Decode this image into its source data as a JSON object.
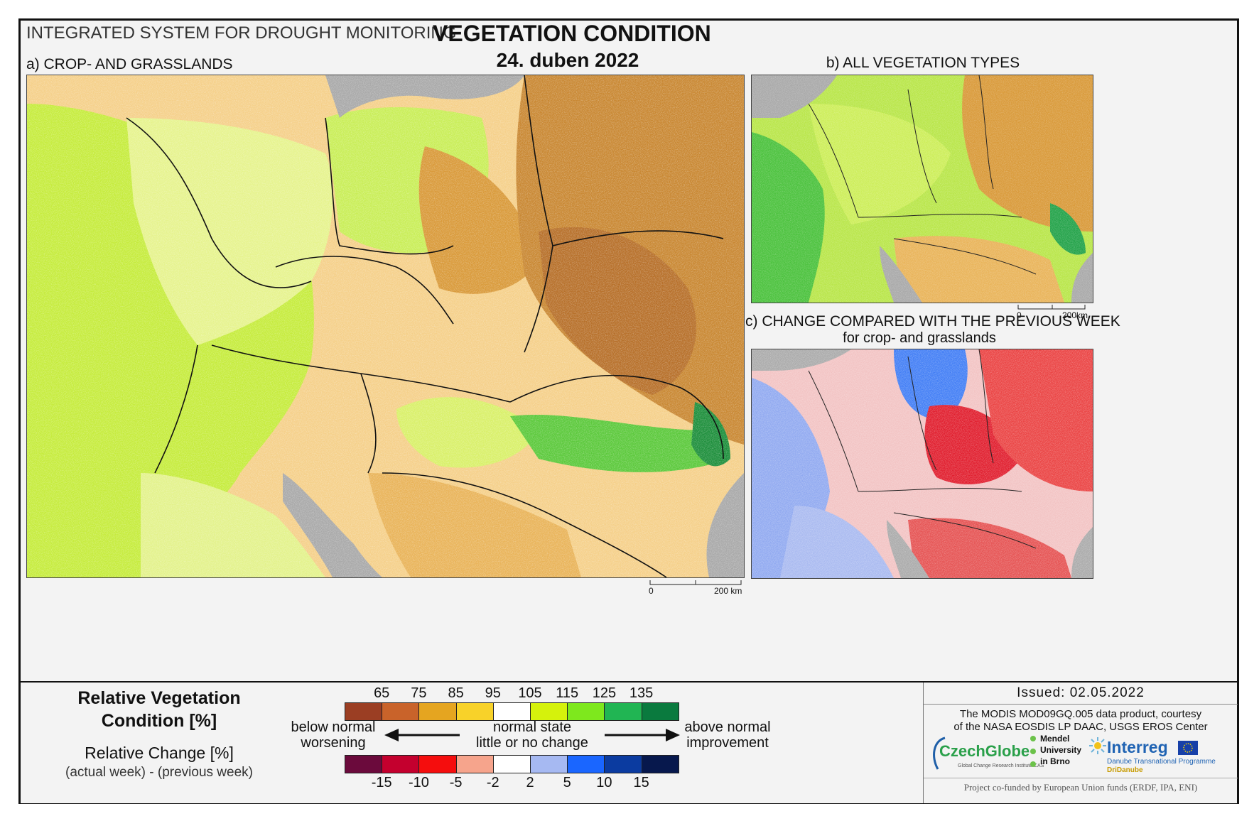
{
  "header": {
    "system_title": "INTEGRATED SYSTEM FOR DROUGHT MONITORING",
    "main_title": "VEGETATION CONDITION",
    "date": "24. duben 2022"
  },
  "panels": {
    "a": {
      "title": "a) CROP- AND GRASSLANDS",
      "scalebar": {
        "start": "0",
        "end": "200 km"
      }
    },
    "b": {
      "title": "b) ALL VEGETATION TYPES",
      "scalebar": {
        "start": "0",
        "end": "200km"
      }
    },
    "c": {
      "title": "c) CHANGE COMPARED WITH THE PREVIOUS WEEK",
      "subtitle": "for crop- and grasslands"
    }
  },
  "legend": {
    "rvc_title_line1": "Relative Vegetation",
    "rvc_title_line2": "Condition [%]",
    "rc_title": "Relative Change [%]",
    "rc_subtitle": "(actual week) - (previous week)",
    "rvc_ticks": [
      "65",
      "75",
      "85",
      "95",
      "105",
      "115",
      "125",
      "135"
    ],
    "rvc_colors": [
      "#9b3e23",
      "#c9632a",
      "#e5a520",
      "#f8d229",
      "#ffffff",
      "#d5f20c",
      "#7ee81d",
      "#21b553",
      "#0a7a3e"
    ],
    "rc_ticks": [
      "-15",
      "-10",
      "-5",
      "-2",
      "2",
      "5",
      "10",
      "15"
    ],
    "rc_colors": [
      "#6b0a3c",
      "#c4002e",
      "#f50d0d",
      "#f6a48c",
      "#ffffff",
      "#a6b9f2",
      "#1a66ff",
      "#0b3ba0",
      "#07184d"
    ],
    "left_label_line1": "below normal",
    "left_label_line2": "worsening",
    "center_label_line1": "normal state",
    "center_label_line2": "little or no change",
    "right_label_line1": "above normal",
    "right_label_line2": "improvement"
  },
  "credits": {
    "issued": "Issued: 02.05.2022",
    "data_line1": "The MODIS MOD09GQ.005 data product, courtesy",
    "data_line2": "of the NASA EOSDIS LP DAAC, USGS EROS Center",
    "czechglobe": "CzechGlobe",
    "czechglobe_sub": "Global Change Research Institute CAS",
    "mendel_line1": "Mendel",
    "mendel_line2": "University",
    "mendel_line3": "in Brno",
    "interreg": "Interreg",
    "interreg_sub1": "Danube Transnational Programme",
    "interreg_sub2": "DriDanube",
    "funding": "Project co-funded by European Union funds (ERDF, IPA, ENI)"
  }
}
